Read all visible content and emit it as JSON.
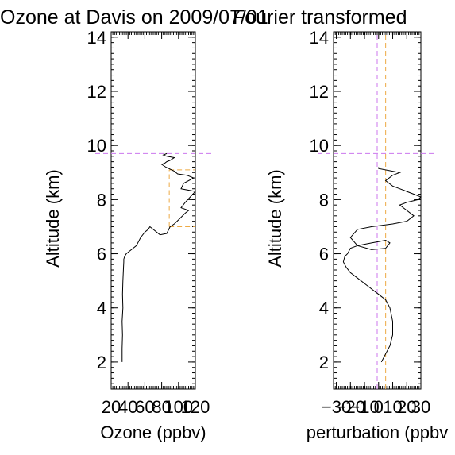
{
  "chart_data": [
    {
      "type": "line",
      "title": "Ozone at Davis on 2009/07/01",
      "xlabel": "Ozone (ppbv)",
      "ylabel": "Altitude (km)",
      "xlim": [
        20,
        120
      ],
      "ylim": [
        1,
        14.2
      ],
      "xticks": [
        "20",
        "40",
        "60",
        "80",
        "100",
        "120"
      ],
      "xtick_values": [
        20,
        40,
        60,
        80,
        100,
        120
      ],
      "yticks": [
        "2",
        "4",
        "6",
        "8",
        "10",
        "12",
        "14"
      ],
      "ytick_values": [
        2,
        4,
        6,
        8,
        10,
        12,
        14
      ],
      "reference_lines": [
        {
          "orientation": "horizontal",
          "value": 9.7,
          "color": "#cc77ee",
          "style": "dashed"
        },
        {
          "orientation": "horizontal",
          "value": 9.1,
          "color": "#eeaa44",
          "style": "dashed",
          "x_range": [
            89,
            120
          ]
        },
        {
          "orientation": "horizontal",
          "value": 7.0,
          "color": "#eeaa44",
          "style": "dashed",
          "x_range": [
            89,
            120
          ]
        },
        {
          "orientation": "vertical",
          "value": 89,
          "color": "#eeaa44",
          "style": "dashed",
          "y_range": [
            7.0,
            9.1
          ]
        }
      ],
      "series": [
        {
          "color": "#000000",
          "x": [
            33,
            33,
            33.5,
            33,
            34,
            33.5,
            34,
            34.5,
            35,
            35,
            36,
            37,
            38,
            42,
            50,
            55,
            60,
            64,
            66,
            70,
            78,
            86,
            90,
            95,
            100,
            108,
            112,
            103,
            108,
            114,
            120,
            103,
            106,
            118,
            110,
            99,
            95,
            85,
            80,
            84,
            86,
            90,
            95,
            86,
            82,
            86
          ],
          "y": [
            2.0,
            2.5,
            3.0,
            3.5,
            4.0,
            4.5,
            5.0,
            5.4,
            5.7,
            5.8,
            5.9,
            5.95,
            6.0,
            6.1,
            6.3,
            6.6,
            6.8,
            6.9,
            7.0,
            6.9,
            6.7,
            6.75,
            7.0,
            7.1,
            7.25,
            7.5,
            7.6,
            7.7,
            7.9,
            8.1,
            8.3,
            8.4,
            8.6,
            8.8,
            8.9,
            8.95,
            9.05,
            9.2,
            9.3,
            9.35,
            9.4,
            9.45,
            9.55,
            9.6,
            9.65,
            9.7
          ]
        }
      ]
    },
    {
      "type": "line",
      "title": "Fourier transformed",
      "xlabel": "perturbation (ppbv",
      "ylabel": "Altitude (km)",
      "xlim": [
        -32,
        30
      ],
      "ylim": [
        1,
        14.2
      ],
      "xticks": [
        "−30",
        "−20",
        "−10",
        "0",
        "10",
        "20",
        "30"
      ],
      "xtick_values": [
        -30,
        -20,
        -10,
        0,
        10,
        20,
        30
      ],
      "yticks": [
        "2",
        "4",
        "6",
        "8",
        "10",
        "12",
        "14"
      ],
      "ytick_values": [
        2,
        4,
        6,
        8,
        10,
        12,
        14
      ],
      "reference_lines": [
        {
          "orientation": "horizontal",
          "value": 9.7,
          "color": "#cc77ee",
          "style": "dashed"
        },
        {
          "orientation": "vertical",
          "value": -1,
          "color": "#cc77ee",
          "style": "dashed"
        },
        {
          "orientation": "vertical",
          "value": 5,
          "color": "#eeaa44",
          "style": "dashed"
        }
      ],
      "series": [
        {
          "color": "#000000",
          "x": [
            2,
            5,
            8,
            10,
            10,
            8,
            5,
            0,
            -5,
            -10,
            -15,
            -20,
            -23,
            -25,
            -24,
            -22,
            -20,
            -15,
            -10,
            -5,
            0,
            5,
            8,
            5,
            -5,
            -15,
            -20,
            -15,
            -5,
            10,
            20,
            25,
            20,
            15,
            20,
            28,
            30,
            25,
            20,
            15,
            10,
            5,
            10,
            15,
            10,
            0,
            0
          ],
          "y": [
            2.0,
            2.3,
            2.6,
            3.0,
            3.5,
            4.0,
            4.3,
            4.5,
            4.7,
            4.9,
            5.1,
            5.3,
            5.5,
            5.7,
            5.9,
            6.0,
            6.2,
            6.3,
            6.35,
            6.4,
            6.45,
            6.5,
            6.4,
            6.2,
            6.15,
            6.3,
            6.6,
            6.9,
            7.0,
            7.1,
            7.2,
            7.4,
            7.6,
            7.8,
            7.9,
            8.0,
            8.1,
            8.2,
            8.3,
            8.4,
            8.5,
            8.7,
            8.9,
            9.0,
            9.05,
            9.15,
            9.2
          ]
        }
      ]
    }
  ]
}
